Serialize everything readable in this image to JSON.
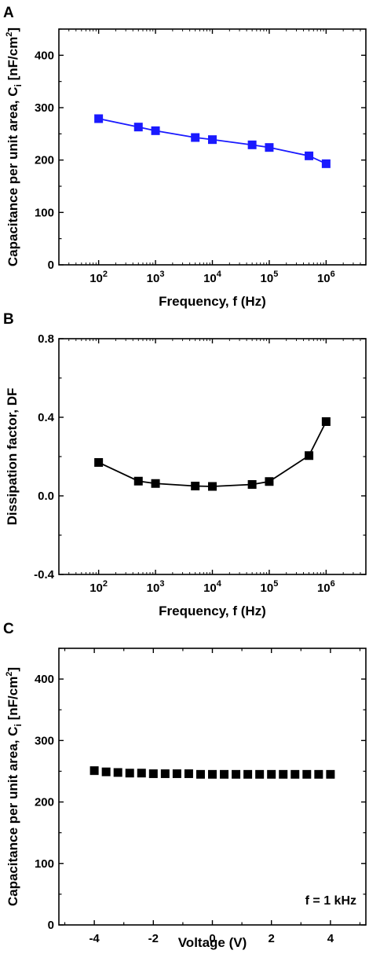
{
  "chart_data": [
    {
      "panel": "A",
      "type": "line",
      "xscale": "log",
      "xlim": [
        20,
        5000000
      ],
      "xticks": [
        100,
        1000,
        10000,
        100000,
        1000000
      ],
      "xtick_labels": [
        {
          "base": "10",
          "exp": "2"
        },
        {
          "base": "10",
          "exp": "3"
        },
        {
          "base": "10",
          "exp": "4"
        },
        {
          "base": "10",
          "exp": "5"
        },
        {
          "base": "10",
          "exp": "6"
        }
      ],
      "xlabel": "Frequency, f (Hz)",
      "ylabel": {
        "main": "Capacitance per unit area, C",
        "sub": "i",
        "unit": " [nF/cm",
        "sup": "2",
        "end": "]"
      },
      "ylim": [
        0,
        450
      ],
      "yticks": [
        0,
        100,
        200,
        300,
        400
      ],
      "ytick_labels": [
        "0",
        "100",
        "200",
        "300",
        "400"
      ],
      "series": [
        {
          "color": "#1a1aff",
          "marker": "square",
          "line": true,
          "x": [
            100,
            500,
            1000,
            5000,
            10000,
            50000,
            100000,
            500000,
            1000000
          ],
          "y": [
            279,
            263,
            256,
            243,
            239,
            229,
            224,
            208,
            193
          ]
        }
      ]
    },
    {
      "panel": "B",
      "type": "line",
      "xscale": "log",
      "xlim": [
        20,
        5000000
      ],
      "xticks": [
        100,
        1000,
        10000,
        100000,
        1000000
      ],
      "xtick_labels": [
        {
          "base": "10",
          "exp": "2"
        },
        {
          "base": "10",
          "exp": "3"
        },
        {
          "base": "10",
          "exp": "4"
        },
        {
          "base": "10",
          "exp": "5"
        },
        {
          "base": "10",
          "exp": "6"
        }
      ],
      "xlabel": "Frequency, f (Hz)",
      "ylabel": {
        "main": "Dissipation factor, DF"
      },
      "ylim": [
        -0.4,
        0.8
      ],
      "yticks": [
        -0.4,
        0.0,
        0.4,
        0.8
      ],
      "ytick_labels": [
        "-0.4",
        "0.0",
        "0.4",
        "0.8"
      ],
      "series": [
        {
          "color": "#000000",
          "marker": "square",
          "line": true,
          "x": [
            100,
            500,
            1000,
            5000,
            10000,
            50000,
            100000,
            500000,
            1000000
          ],
          "y": [
            0.17,
            0.075,
            0.063,
            0.05,
            0.048,
            0.058,
            0.073,
            0.205,
            0.378
          ]
        }
      ]
    },
    {
      "panel": "C",
      "type": "scatter",
      "xscale": "linear",
      "xlim": [
        -5.2,
        5.2
      ],
      "xticks": [
        -4,
        -2,
        0,
        2,
        4
      ],
      "xtick_labels": [
        "-4",
        "-2",
        "0",
        "2",
        "4"
      ],
      "xlabel": "Voltage (V)",
      "ylabel": {
        "main": "Capacitance per unit area, C",
        "sub": "i",
        "unit": " [nF/cm",
        "sup": "2",
        "end": "]"
      },
      "ylim": [
        0,
        450
      ],
      "yticks": [
        0,
        100,
        200,
        300,
        400
      ],
      "ytick_labels": [
        "0",
        "100",
        "200",
        "300",
        "400"
      ],
      "annotation": "f = 1 kHz",
      "series": [
        {
          "color": "#000000",
          "marker": "square",
          "line": false,
          "x": [
            -4.0,
            -3.6,
            -3.2,
            -2.8,
            -2.4,
            -2.0,
            -1.6,
            -1.2,
            -0.8,
            -0.4,
            0.0,
            0.4,
            0.8,
            1.2,
            1.6,
            2.0,
            2.4,
            2.8,
            3.2,
            3.6,
            4.0
          ],
          "y": [
            251,
            249,
            248,
            247,
            247,
            246,
            246,
            246,
            246,
            245,
            245,
            245,
            245,
            245,
            245,
            245,
            245,
            245,
            245,
            245,
            245
          ]
        }
      ]
    }
  ]
}
